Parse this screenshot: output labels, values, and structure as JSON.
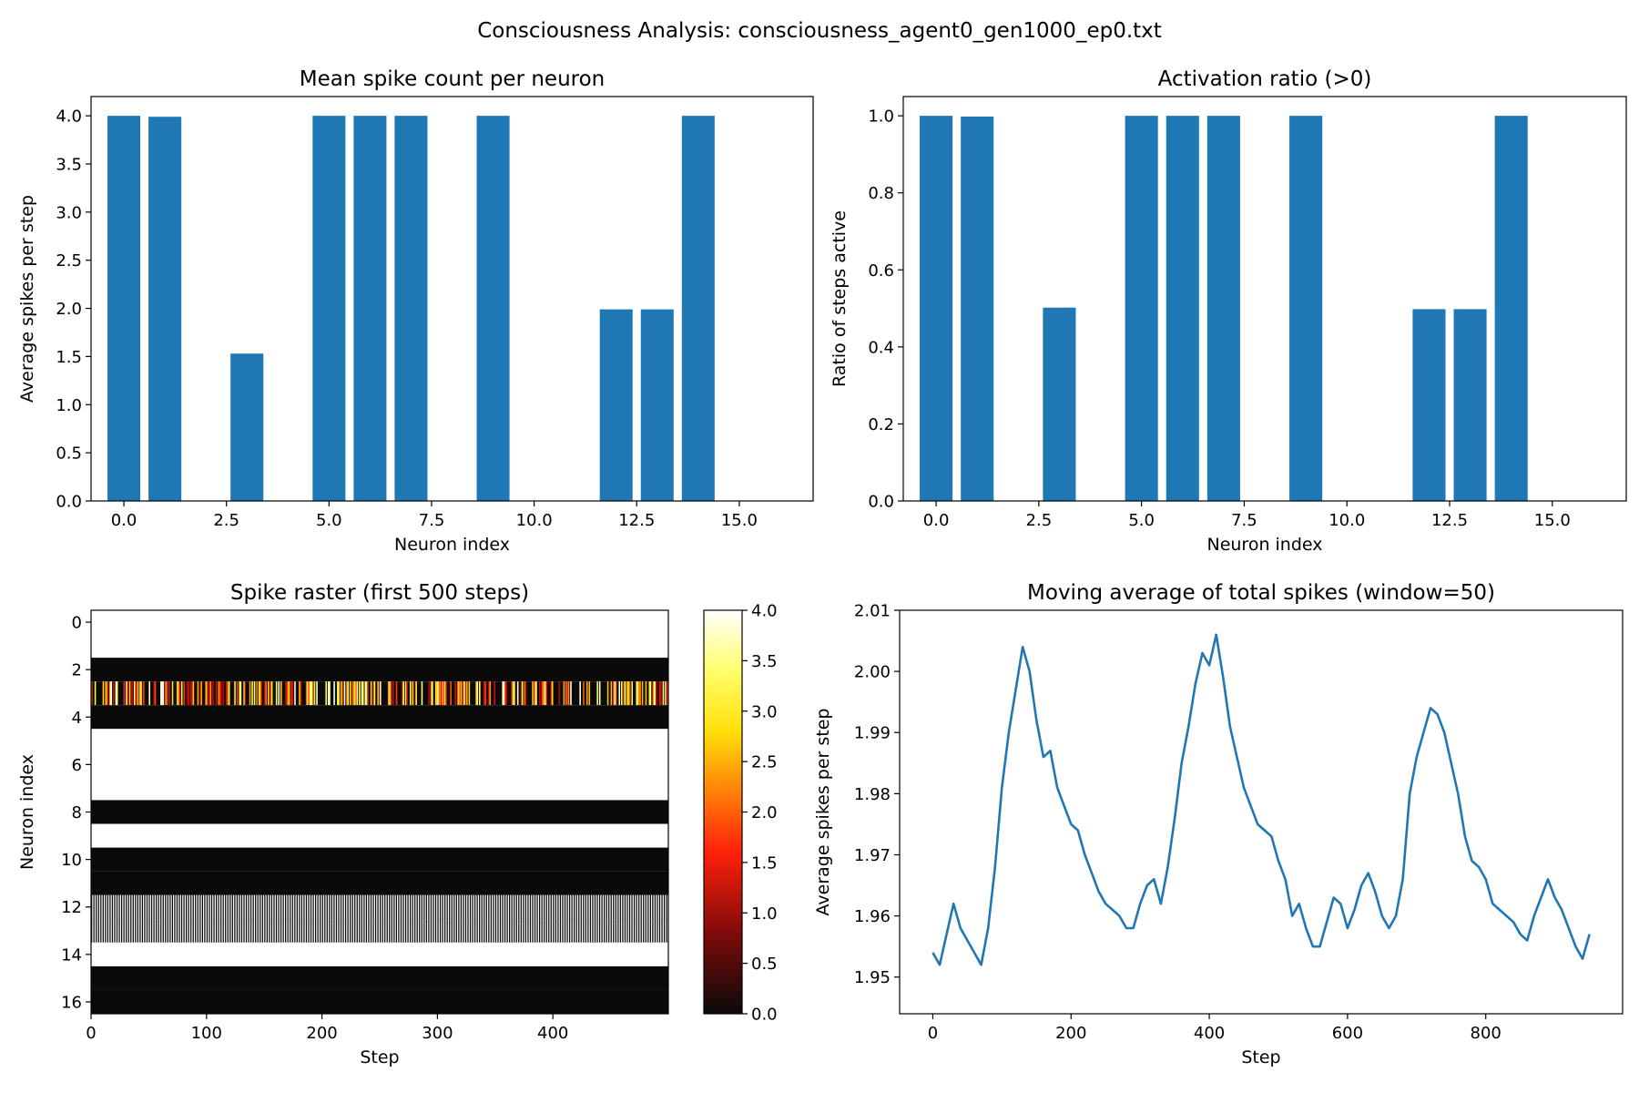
{
  "figure": {
    "title": "Consciousness Analysis: consciousness_agent0_gen1000_ep0.txt"
  },
  "colors": {
    "bar": "#1f77b4",
    "line": "#1f77b4"
  },
  "chart_data": [
    {
      "id": "mean-spike",
      "type": "bar",
      "title": "Mean spike count per neuron",
      "xlabel": "Neuron index",
      "ylabel": "Average spikes per step",
      "xlim": [
        -0.8,
        16.8
      ],
      "ylim": [
        0,
        4.2
      ],
      "xticks": [
        0.0,
        2.5,
        5.0,
        7.5,
        10.0,
        12.5,
        15.0
      ],
      "xtick_labels": [
        "0.0",
        "2.5",
        "5.0",
        "7.5",
        "10.0",
        "12.5",
        "15.0"
      ],
      "yticks": [
        0.0,
        0.5,
        1.0,
        1.5,
        2.0,
        2.5,
        3.0,
        3.5,
        4.0
      ],
      "ytick_labels": [
        "0.0",
        "0.5",
        "1.0",
        "1.5",
        "2.0",
        "2.5",
        "3.0",
        "3.5",
        "4.0"
      ],
      "categories": [
        0,
        1,
        2,
        3,
        4,
        5,
        6,
        7,
        8,
        9,
        10,
        11,
        12,
        13,
        14,
        15,
        16
      ],
      "values": [
        4.0,
        3.99,
        0,
        1.53,
        0,
        4.0,
        4.0,
        4.0,
        0,
        4.0,
        0,
        0,
        1.99,
        1.99,
        4.0,
        0,
        0
      ]
    },
    {
      "id": "activation-ratio",
      "type": "bar",
      "title": "Activation ratio (>0)",
      "xlabel": "Neuron index",
      "ylabel": "Ratio of steps active",
      "xlim": [
        -0.8,
        16.8
      ],
      "ylim": [
        0,
        1.05
      ],
      "xticks": [
        0.0,
        2.5,
        5.0,
        7.5,
        10.0,
        12.5,
        15.0
      ],
      "xtick_labels": [
        "0.0",
        "2.5",
        "5.0",
        "7.5",
        "10.0",
        "12.5",
        "15.0"
      ],
      "yticks": [
        0.0,
        0.2,
        0.4,
        0.6,
        0.8,
        1.0
      ],
      "ytick_labels": [
        "0.0",
        "0.2",
        "0.4",
        "0.6",
        "0.8",
        "1.0"
      ],
      "categories": [
        0,
        1,
        2,
        3,
        4,
        5,
        6,
        7,
        8,
        9,
        10,
        11,
        12,
        13,
        14,
        15,
        16
      ],
      "values": [
        1.0,
        0.998,
        0,
        0.502,
        0,
        1.0,
        1.0,
        1.0,
        0,
        1.0,
        0,
        0,
        0.498,
        0.498,
        1.0,
        0,
        0
      ]
    },
    {
      "id": "spike-raster",
      "type": "heatmap",
      "title": "Spike raster (first 500 steps)",
      "xlabel": "Step",
      "ylabel": "Neuron index",
      "xlim": [
        0,
        500
      ],
      "ylim": [
        16.5,
        -0.5
      ],
      "xticks": [
        0,
        100,
        200,
        300,
        400
      ],
      "xtick_labels": [
        "0",
        "100",
        "200",
        "300",
        "400"
      ],
      "yticks": [
        0,
        2,
        4,
        6,
        8,
        10,
        12,
        14,
        16
      ],
      "ytick_labels": [
        "0",
        "2",
        "4",
        "6",
        "8",
        "10",
        "12",
        "14",
        "16"
      ],
      "colormap": "hot",
      "colorbar": {
        "range": [
          0,
          4
        ],
        "ticks": [
          0.0,
          0.5,
          1.0,
          1.5,
          2.0,
          2.5,
          3.0,
          3.5,
          4.0
        ],
        "tick_labels": [
          "0.0",
          "0.5",
          "1.0",
          "1.5",
          "2.0",
          "2.5",
          "3.0",
          "3.5",
          "4.0"
        ]
      },
      "rows": [
        {
          "neuron": 0,
          "value": 4,
          "pattern": "constant"
        },
        {
          "neuron": 1,
          "value": 4,
          "pattern": "constant"
        },
        {
          "neuron": 2,
          "value": 0,
          "pattern": "constant"
        },
        {
          "neuron": 3,
          "value": 0,
          "pattern": "intermittent",
          "range": [
            0,
            4
          ]
        },
        {
          "neuron": 4,
          "value": 0,
          "pattern": "constant"
        },
        {
          "neuron": 5,
          "value": 4,
          "pattern": "constant"
        },
        {
          "neuron": 6,
          "value": 4,
          "pattern": "constant"
        },
        {
          "neuron": 7,
          "value": 4,
          "pattern": "constant"
        },
        {
          "neuron": 8,
          "value": 0,
          "pattern": "constant"
        },
        {
          "neuron": 9,
          "value": 4,
          "pattern": "constant"
        },
        {
          "neuron": 10,
          "value": 0,
          "pattern": "constant"
        },
        {
          "neuron": 11,
          "value": 0,
          "pattern": "constant"
        },
        {
          "neuron": 12,
          "value": 0,
          "pattern": "alternating",
          "range": [
            0,
            4
          ]
        },
        {
          "neuron": 13,
          "value": 0,
          "pattern": "alternating",
          "range": [
            0,
            4
          ]
        },
        {
          "neuron": 14,
          "value": 4,
          "pattern": "constant"
        },
        {
          "neuron": 15,
          "value": 0,
          "pattern": "constant"
        },
        {
          "neuron": 16,
          "value": 0,
          "pattern": "constant"
        }
      ]
    },
    {
      "id": "moving-average",
      "type": "line",
      "title": "Moving average of total spikes (window=50)",
      "xlabel": "Step",
      "ylabel": "Average spikes per step",
      "xlim": [
        -48,
        998
      ],
      "ylim": [
        1.944,
        2.01
      ],
      "xticks": [
        0,
        200,
        400,
        600,
        800
      ],
      "xtick_labels": [
        "0",
        "200",
        "400",
        "600",
        "800"
      ],
      "yticks": [
        1.95,
        1.96,
        1.97,
        1.98,
        1.99,
        2.0,
        2.01
      ],
      "ytick_labels": [
        "1.95",
        "1.96",
        "1.97",
        "1.98",
        "1.99",
        "2.00",
        "2.01"
      ],
      "x": [
        0,
        10,
        20,
        30,
        40,
        50,
        60,
        70,
        80,
        90,
        100,
        110,
        120,
        130,
        140,
        150,
        160,
        170,
        180,
        190,
        200,
        210,
        220,
        230,
        240,
        250,
        260,
        270,
        280,
        290,
        300,
        310,
        320,
        330,
        340,
        350,
        360,
        370,
        380,
        390,
        400,
        410,
        420,
        430,
        440,
        450,
        460,
        470,
        480,
        490,
        500,
        510,
        520,
        530,
        540,
        550,
        560,
        570,
        580,
        590,
        600,
        610,
        620,
        630,
        640,
        650,
        660,
        670,
        680,
        690,
        700,
        710,
        720,
        730,
        740,
        750,
        760,
        770,
        780,
        790,
        800,
        810,
        820,
        830,
        840,
        850,
        860,
        870,
        880,
        890,
        900,
        910,
        920,
        930,
        940,
        950
      ],
      "y": [
        1.954,
        1.952,
        1.957,
        1.962,
        1.958,
        1.956,
        1.954,
        1.952,
        1.958,
        1.968,
        1.981,
        1.99,
        1.997,
        2.004,
        2.0,
        1.992,
        1.986,
        1.987,
        1.981,
        1.978,
        1.975,
        1.974,
        1.97,
        1.967,
        1.964,
        1.962,
        1.961,
        1.96,
        1.958,
        1.958,
        1.962,
        1.965,
        1.966,
        1.962,
        1.968,
        1.976,
        1.985,
        1.991,
        1.998,
        2.003,
        2.001,
        2.006,
        1.999,
        1.991,
        1.986,
        1.981,
        1.978,
        1.975,
        1.974,
        1.973,
        1.969,
        1.966,
        1.96,
        1.962,
        1.958,
        1.955,
        1.955,
        1.959,
        1.963,
        1.962,
        1.958,
        1.961,
        1.965,
        1.967,
        1.964,
        1.96,
        1.958,
        1.96,
        1.966,
        1.98,
        1.986,
        1.99,
        1.994,
        1.993,
        1.99,
        1.985,
        1.98,
        1.973,
        1.969,
        1.968,
        1.966,
        1.962,
        1.961,
        1.96,
        1.959,
        1.957,
        1.956,
        1.96,
        1.963,
        1.966,
        1.963,
        1.961,
        1.958,
        1.955,
        1.953,
        1.957
      ]
    }
  ]
}
